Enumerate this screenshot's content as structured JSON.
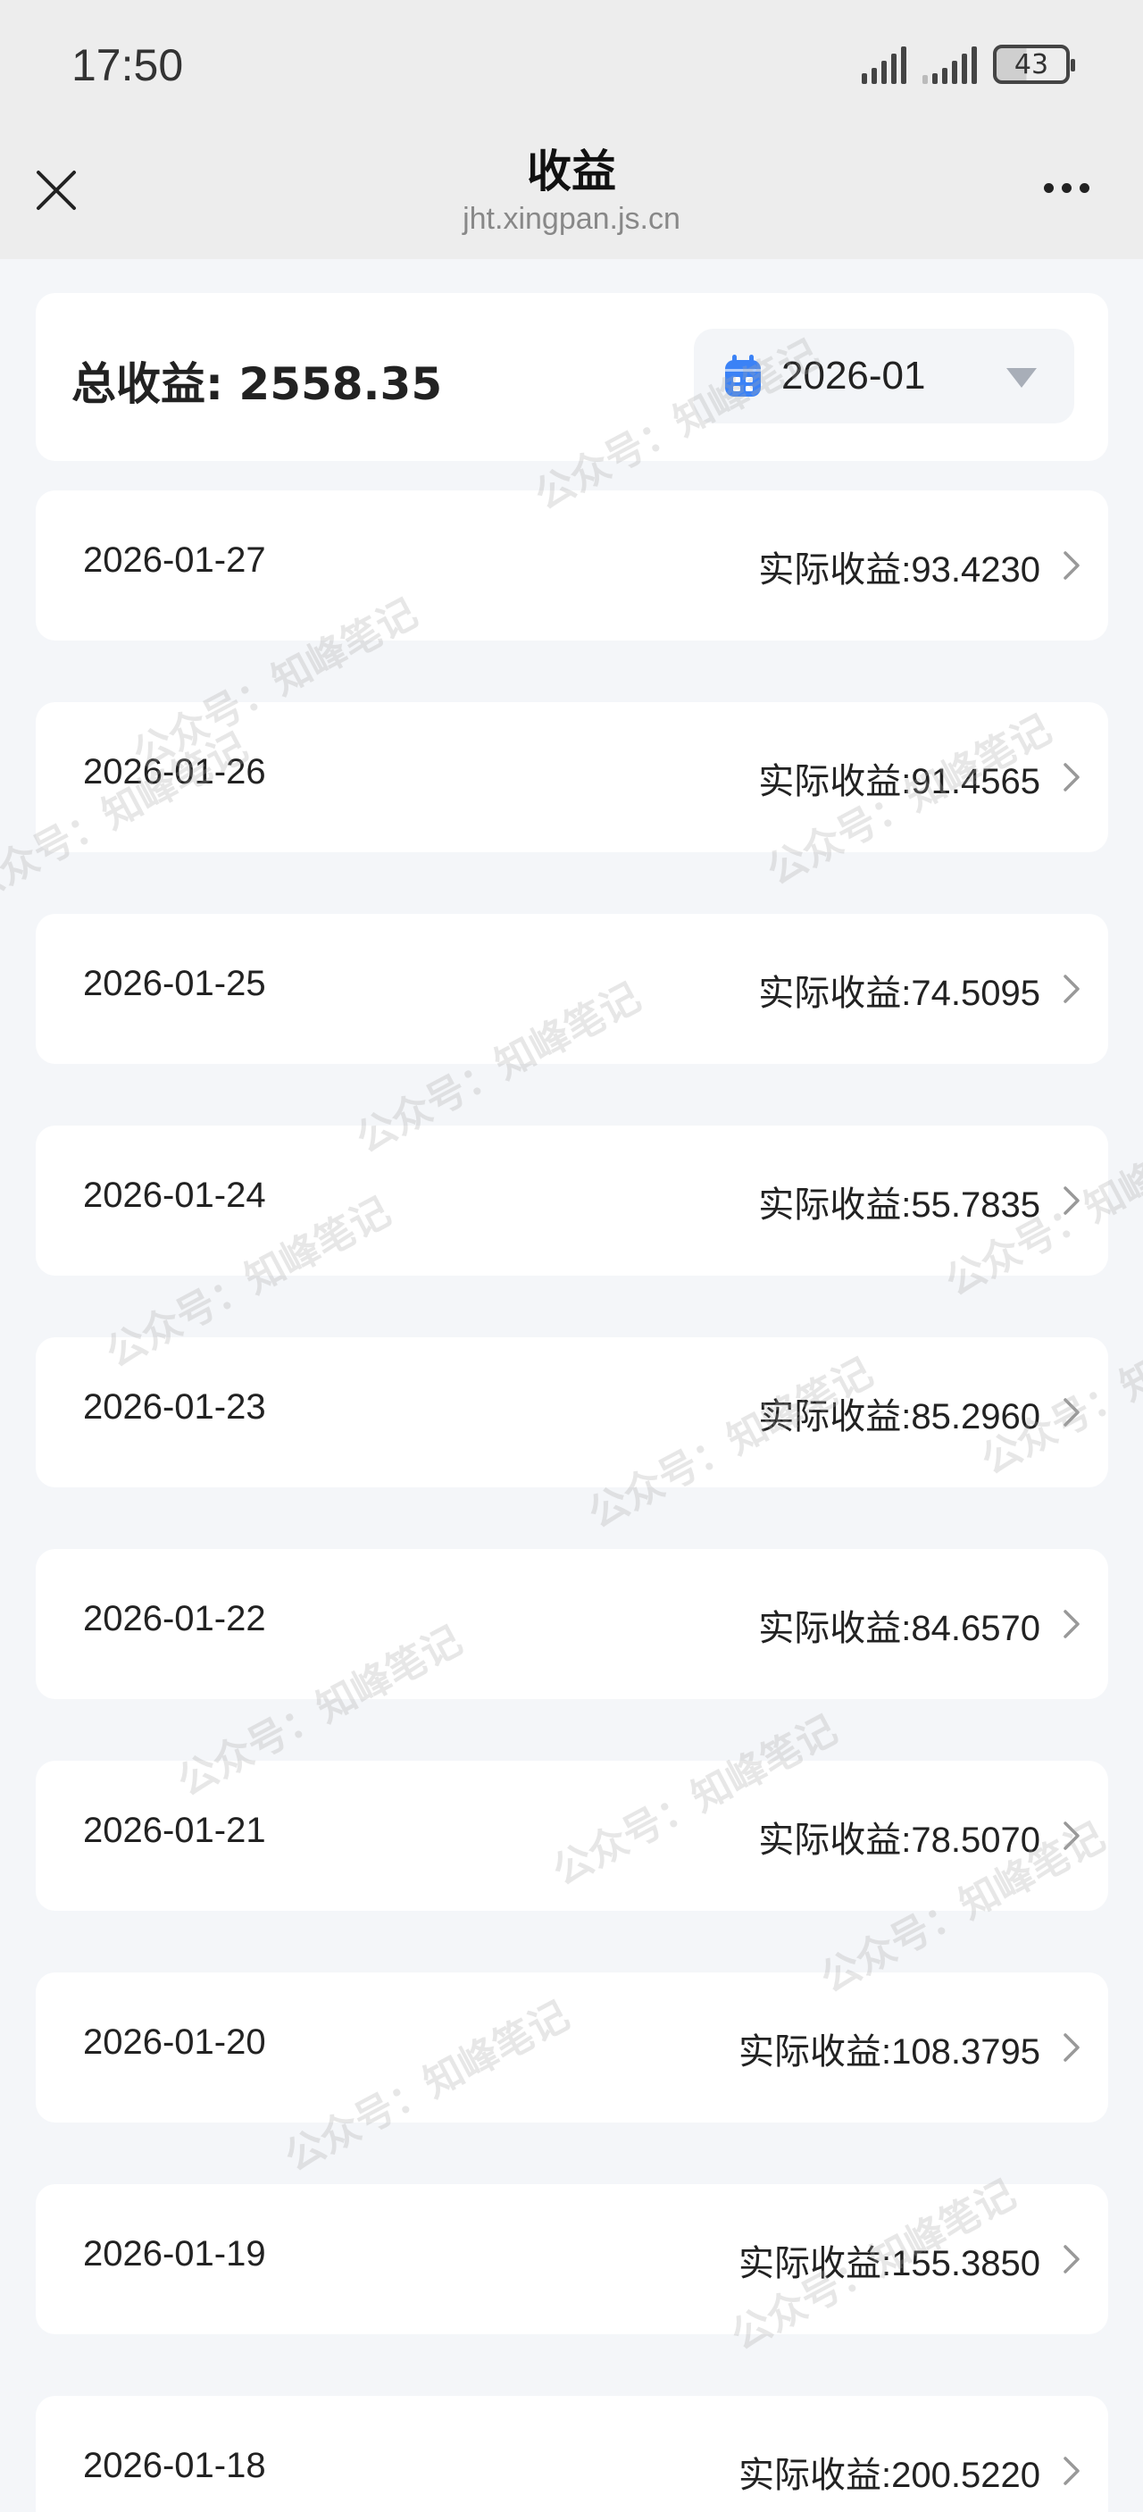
{
  "status_bar": {
    "time": "17:50",
    "battery": "43"
  },
  "nav": {
    "title": "收益",
    "url": "jht.xingpan.js.cn",
    "close_icon": "close-icon",
    "more_icon": "more-icon"
  },
  "summary": {
    "total_label": "总收益: 2558.35",
    "month_value": "2026-01",
    "calendar_icon": "calendar-icon",
    "accent": "#3b82f6"
  },
  "rows": [
    {
      "date": "2026-01-27",
      "amount": "实际收益:93.4230"
    },
    {
      "date": "2026-01-26",
      "amount": "实际收益:91.4565"
    },
    {
      "date": "2026-01-25",
      "amount": "实际收益:74.5095"
    },
    {
      "date": "2026-01-24",
      "amount": "实际收益:55.7835"
    },
    {
      "date": "2026-01-23",
      "amount": "实际收益:85.2960"
    },
    {
      "date": "2026-01-22",
      "amount": "实际收益:84.6570"
    },
    {
      "date": "2026-01-21",
      "amount": "实际收益:78.5070"
    },
    {
      "date": "2026-01-20",
      "amount": "实际收益:108.3795"
    },
    {
      "date": "2026-01-19",
      "amount": "实际收益:155.3850"
    },
    {
      "date": "2026-01-18",
      "amount": "实际收益:200.5220"
    }
  ],
  "watermark": "公众号：知峰笔记"
}
